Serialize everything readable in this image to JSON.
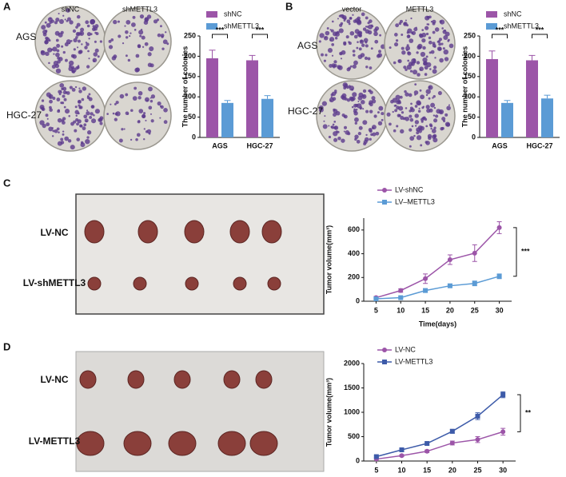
{
  "panel_labels": [
    "A",
    "B",
    "C",
    "D"
  ],
  "photos": {
    "a_cols": [
      "shNC",
      "shMETTL3"
    ],
    "a_rows": [
      "AGS",
      "HGC-27"
    ],
    "b_cols": [
      "vector",
      "METTL3"
    ],
    "b_rows": [
      "AGS",
      "HGC-27"
    ],
    "c_rows": [
      "LV-NC",
      "LV-shMETTL3"
    ],
    "d_rows": [
      "LV-NC",
      "LV-METTL3"
    ]
  },
  "chart_data": [
    {
      "type": "bar",
      "y_label": "The number of colonies",
      "categories": [
        "AGS",
        "HGC-27"
      ],
      "series": [
        {
          "name": "shNC",
          "color": "#9c55a8",
          "values": [
            195,
            190
          ],
          "errors": [
            20,
            12
          ]
        },
        {
          "name": "shMETTL3",
          "color": "#5b9bd5",
          "values": [
            85,
            95
          ],
          "errors": [
            6,
            8
          ]
        }
      ],
      "ylim": [
        0,
        250
      ],
      "yticks": [
        0,
        50,
        100,
        150,
        200,
        250
      ],
      "annotations": [
        "***",
        "***"
      ]
    },
    {
      "type": "bar",
      "y_label": "The number of colonies",
      "categories": [
        "AGS",
        "HGC-27"
      ],
      "series": [
        {
          "name": "shNC",
          "color": "#9c55a8",
          "values": [
            193,
            190
          ],
          "errors": [
            20,
            12
          ]
        },
        {
          "name": "shMETTL3",
          "color": "#5b9bd5",
          "values": [
            85,
            96
          ],
          "errors": [
            6,
            8
          ]
        }
      ],
      "ylim": [
        0,
        250
      ],
      "yticks": [
        0,
        50,
        100,
        150,
        200,
        250
      ],
      "annotations": [
        "***",
        "***"
      ]
    },
    {
      "type": "line",
      "x_label": "Time(days)",
      "y_label": "Tumor volume(mm³)",
      "x": [
        5,
        10,
        15,
        20,
        25,
        30
      ],
      "series": [
        {
          "name": "LV-shNC",
          "color": "#9c55a8",
          "marker": "circle",
          "values": [
            30,
            90,
            190,
            350,
            405,
            620
          ],
          "errors": [
            10,
            15,
            40,
            40,
            70,
            50
          ]
        },
        {
          "name": "LV–METTL3",
          "color": "#5b9bd5",
          "marker": "square",
          "values": [
            20,
            30,
            90,
            130,
            150,
            210
          ],
          "errors": [
            5,
            8,
            15,
            15,
            20,
            20
          ]
        }
      ],
      "xlim": [
        2.5,
        32.5
      ],
      "xticks": [
        5,
        10,
        15,
        20,
        25,
        30
      ],
      "ylim": [
        0,
        700
      ],
      "yticks": [
        0,
        200,
        400,
        600
      ],
      "annotations": [
        "***"
      ]
    },
    {
      "type": "line",
      "y_label": "Tumor volume(mm³)",
      "x": [
        5,
        10,
        15,
        20,
        25,
        30
      ],
      "series": [
        {
          "name": "LV-NC",
          "color": "#9c55a8",
          "marker": "circle",
          "values": [
            40,
            110,
            200,
            370,
            440,
            600
          ],
          "errors": [
            10,
            20,
            25,
            40,
            60,
            70
          ]
        },
        {
          "name": "LV-METTL3",
          "color": "#3d5ba9",
          "marker": "square",
          "values": [
            90,
            230,
            360,
            610,
            920,
            1360
          ],
          "errors": [
            15,
            25,
            30,
            40,
            70,
            60
          ]
        }
      ],
      "xlim": [
        2.5,
        32.5
      ],
      "xticks": [
        5,
        10,
        15,
        20,
        25,
        30
      ],
      "ylim": [
        0,
        2000
      ],
      "yticks": [
        0,
        500,
        1000,
        1500,
        2000
      ],
      "annotations": [
        "**"
      ]
    }
  ]
}
